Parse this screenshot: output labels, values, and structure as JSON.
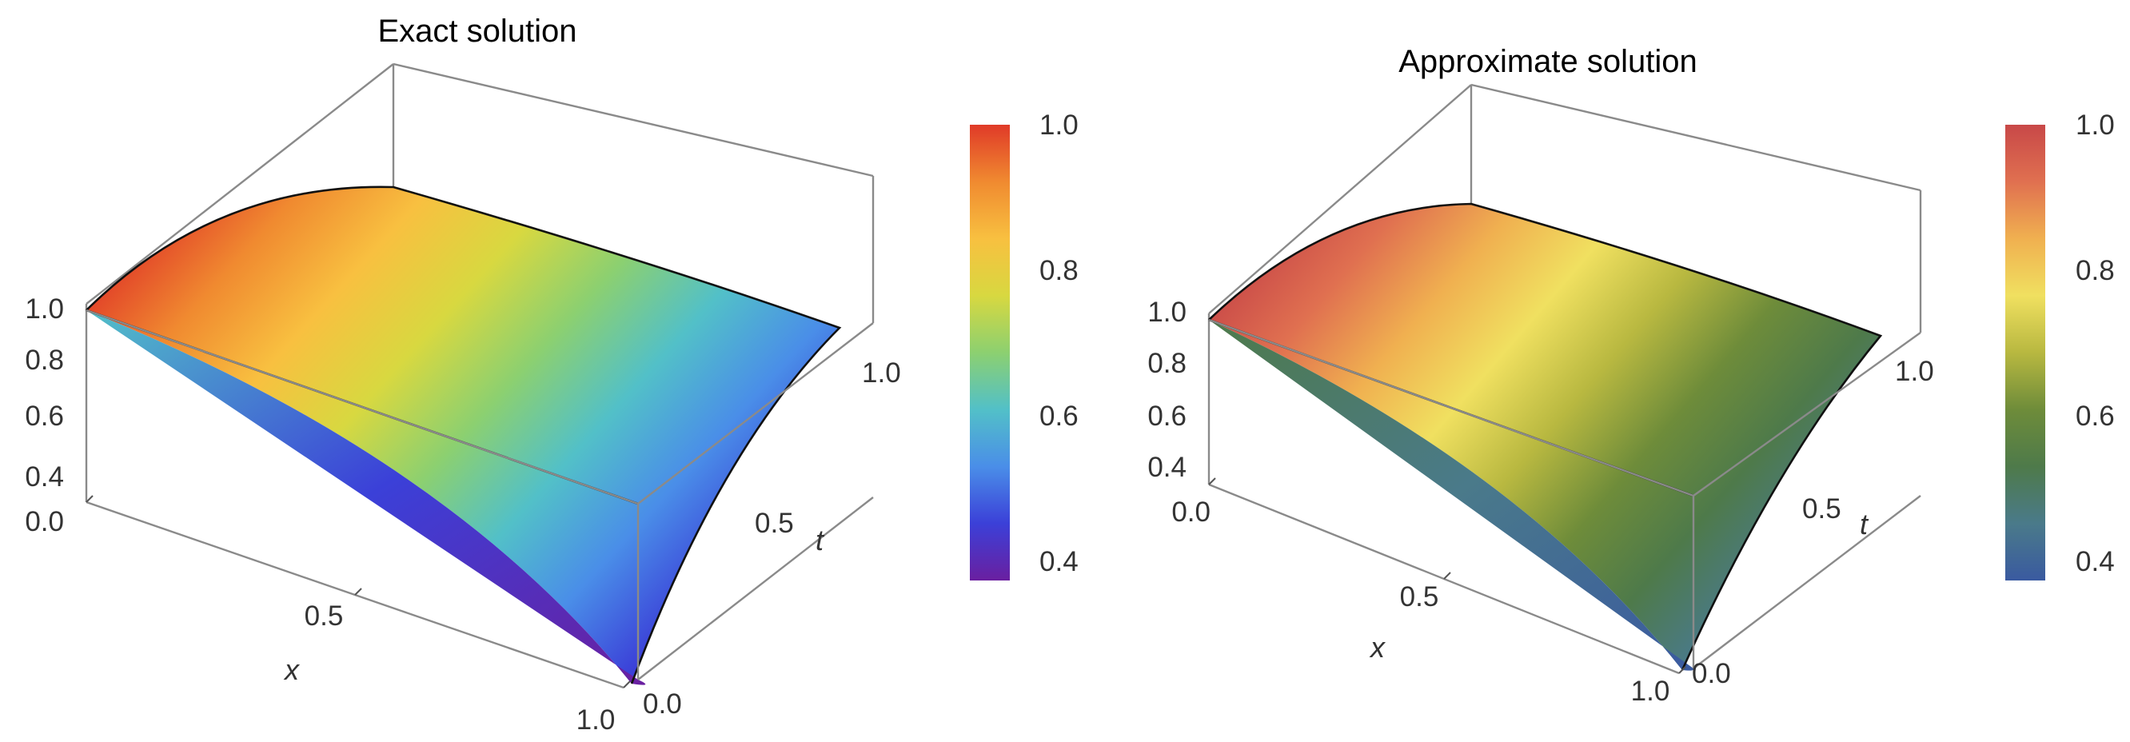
{
  "chart_data": [
    {
      "type": "surface3d",
      "title": "Exact solution",
      "xlabel": "x",
      "ylabel": "t",
      "x_ticks": [
        "0.0",
        "0.5",
        "1.0"
      ],
      "t_ticks": [
        "0.0",
        "0.5",
        "1.0"
      ],
      "z_ticks": [
        "0.4",
        "0.6",
        "0.8",
        "1.0"
      ],
      "x_range": [
        0,
        1
      ],
      "t_range": [
        0,
        1
      ],
      "z_range": [
        0.37,
        1.0
      ],
      "colorbar": {
        "ticks": [
          "0.4",
          "0.6",
          "0.8",
          "1.0"
        ],
        "range": [
          0.37,
          1.0
        ],
        "colormap": "rainbow"
      },
      "corner_values": {
        "x0_t0": 1.0,
        "x1_t0": 0.37,
        "x0_t1": 1.0,
        "x1_t1": 0.55
      },
      "surface_description": "u is maximal (1.0) along x=0 and decreases toward x=1; edge at t=1 is higher than at t=0"
    },
    {
      "type": "surface3d",
      "title": "Approximate solution",
      "xlabel": "x",
      "ylabel": "t",
      "x_ticks": [
        "0.0",
        "0.5",
        "1.0"
      ],
      "t_ticks": [
        "0.0",
        "0.5",
        "1.0"
      ],
      "z_ticks": [
        "0.4",
        "0.6",
        "0.8",
        "1.0"
      ],
      "x_range": [
        0,
        1
      ],
      "t_range": [
        0,
        1
      ],
      "z_range": [
        0.37,
        1.0
      ],
      "colorbar": {
        "ticks": [
          "0.4",
          "0.6",
          "0.8",
          "1.0"
        ],
        "range": [
          0.37,
          1.0
        ],
        "colormap": "darkrainbow"
      },
      "corner_values": {
        "x0_t0": 1.0,
        "x1_t0": 0.38,
        "x0_t1": 1.0,
        "x1_t1": 0.55
      },
      "surface_description": "approximation closely matching the exact solution"
    }
  ]
}
